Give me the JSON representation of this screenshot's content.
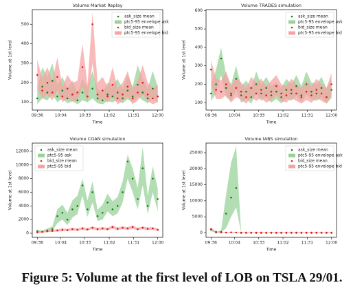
{
  "chart_data": [
    {
      "type": "scatter",
      "title": "Volume Market Replay",
      "xlabel": "Time",
      "ylabel": "Volume at 1st level",
      "x": [
        576,
        582,
        588,
        594,
        600,
        606,
        612,
        618,
        624,
        630,
        636,
        642,
        648,
        654,
        660,
        666,
        672,
        678,
        684,
        690,
        696,
        702,
        708,
        714,
        720
      ],
      "xlim": [
        570,
        726
      ],
      "xticks": [
        {
          "value": 576,
          "label": "09:36"
        },
        {
          "value": 604,
          "label": "10:04"
        },
        {
          "value": 633,
          "label": "10:33"
        },
        {
          "value": 662,
          "label": "11:02"
        },
        {
          "value": 691,
          "label": "11:31"
        },
        {
          "value": 720,
          "label": "12:00"
        }
      ],
      "ylim": [
        60,
        575
      ],
      "yticks": [
        100,
        200,
        300,
        400,
        500
      ],
      "legend": "upper right",
      "series": [
        {
          "name": "ask_size mean",
          "color": "#1f7a1f",
          "values": [
            120,
            180,
            150,
            210,
            130,
            160,
            120,
            140,
            110,
            150,
            130,
            170,
            120,
            110,
            140,
            130,
            150,
            120,
            160,
            130,
            190,
            150,
            120,
            170,
            130
          ]
        },
        {
          "name": "ptc5-95 envelope ask",
          "color": "#9ad39a",
          "lower": [
            90,
            120,
            110,
            140,
            100,
            120,
            95,
            105,
            90,
            110,
            100,
            120,
            95,
            90,
            105,
            100,
            110,
            95,
            115,
            100,
            130,
            110,
            95,
            120,
            100
          ],
          "upper": [
            170,
            280,
            230,
            300,
            190,
            230,
            170,
            210,
            150,
            220,
            180,
            260,
            170,
            150,
            200,
            190,
            220,
            170,
            240,
            180,
            290,
            220,
            170,
            260,
            180
          ]
        },
        {
          "name": "bid_size mean",
          "color": "#e01b1b",
          "values": [
            240,
            160,
            200,
            150,
            230,
            130,
            170,
            140,
            150,
            280,
            130,
            500,
            140,
            160,
            130,
            190,
            120,
            140,
            180,
            120,
            150,
            200,
            140,
            120,
            130
          ]
        },
        {
          "name": "ptc5-95 envelope bid",
          "color": "#f5a3a3",
          "lower": [
            170,
            120,
            140,
            110,
            160,
            100,
            120,
            105,
            110,
            180,
            100,
            300,
            105,
            120,
            100,
            130,
            90,
            105,
            130,
            90,
            110,
            140,
            105,
            90,
            100
          ],
          "upper": [
            320,
            220,
            280,
            210,
            330,
            180,
            240,
            200,
            210,
            400,
            190,
            560,
            200,
            230,
            180,
            280,
            170,
            200,
            260,
            170,
            210,
            290,
            200,
            170,
            190
          ]
        }
      ]
    },
    {
      "type": "scatter",
      "title": "Volume TRADES simulation",
      "xlabel": "Time",
      "ylabel": "Volume at 1st level",
      "x": [
        576,
        582,
        588,
        594,
        600,
        606,
        612,
        618,
        624,
        630,
        636,
        642,
        648,
        654,
        660,
        666,
        672,
        678,
        684,
        690,
        696,
        702,
        708,
        714,
        720
      ],
      "xlim": [
        570,
        726
      ],
      "xticks": [
        {
          "value": 576,
          "label": "09:36"
        },
        {
          "value": 604,
          "label": "10:04"
        },
        {
          "value": 633,
          "label": "10:33"
        },
        {
          "value": 662,
          "label": "11:02"
        },
        {
          "value": 691,
          "label": "11:31"
        },
        {
          "value": 720,
          "label": "12:00"
        }
      ],
      "ylim": [
        60,
        605
      ],
      "yticks": [
        100,
        200,
        300,
        400,
        500,
        600
      ],
      "legend": "upper right",
      "series": [
        {
          "name": "ask_size mean",
          "color": "#1f7a1f",
          "values": [
            150,
            200,
            340,
            180,
            150,
            230,
            140,
            160,
            130,
            200,
            150,
            180,
            140,
            160,
            130,
            170,
            150,
            190,
            140,
            200,
            160,
            150,
            180,
            130,
            170
          ]
        },
        {
          "name": "ptc5-95 envelope ask",
          "color": "#9ad39a",
          "lower": [
            110,
            150,
            250,
            130,
            110,
            170,
            100,
            120,
            95,
            150,
            110,
            130,
            100,
            120,
            95,
            125,
            110,
            140,
            100,
            145,
            120,
            110,
            130,
            95,
            125
          ],
          "upper": [
            200,
            280,
            400,
            250,
            200,
            300,
            190,
            220,
            180,
            270,
            200,
            240,
            190,
            210,
            180,
            230,
            200,
            250,
            190,
            270,
            210,
            200,
            240,
            180,
            230
          ]
        },
        {
          "name": "bid_size mean",
          "color": "#e01b1b",
          "values": [
            280,
            170,
            160,
            200,
            140,
            180,
            160,
            130,
            180,
            150,
            170,
            140,
            160,
            190,
            150,
            140,
            170,
            150,
            130,
            160,
            140,
            170,
            150,
            130,
            200
          ]
        },
        {
          "name": "ptc5-95 envelope bid",
          "color": "#f5a3a3",
          "lower": [
            200,
            120,
            120,
            140,
            100,
            130,
            115,
            95,
            130,
            110,
            125,
            100,
            115,
            140,
            110,
            100,
            125,
            110,
            95,
            115,
            100,
            125,
            110,
            95,
            140
          ],
          "upper": [
            330,
            230,
            220,
            270,
            190,
            240,
            210,
            180,
            240,
            210,
            230,
            190,
            220,
            250,
            200,
            190,
            230,
            200,
            180,
            220,
            190,
            230,
            200,
            180,
            260
          ]
        }
      ]
    },
    {
      "type": "scatter",
      "title": "Volume CGAN simulation",
      "xlabel": "Time",
      "ylabel": "Volume at 1st level",
      "x": [
        576,
        582,
        588,
        594,
        600,
        606,
        612,
        618,
        624,
        630,
        636,
        642,
        648,
        654,
        660,
        666,
        672,
        678,
        684,
        690,
        696,
        702,
        708,
        714,
        720
      ],
      "xlim": [
        570,
        726
      ],
      "xticks": [
        {
          "value": 576,
          "label": "09:36"
        },
        {
          "value": 604,
          "label": "10:04"
        },
        {
          "value": 633,
          "label": "10:33"
        },
        {
          "value": 662,
          "label": "11:02"
        },
        {
          "value": 691,
          "label": "11:31"
        },
        {
          "value": 720,
          "label": "12:00"
        }
      ],
      "ylim": [
        -600,
        13200
      ],
      "yticks": [
        0,
        2000,
        4000,
        6000,
        8000,
        10000,
        12000
      ],
      "legend": "upper left",
      "series": [
        {
          "name": "ask_size mean",
          "color": "#1f7a1f",
          "values": [
            300,
            200,
            400,
            600,
            2500,
            3000,
            2000,
            3500,
            4000,
            7000,
            3500,
            6000,
            2500,
            3000,
            4500,
            3500,
            4000,
            6000,
            10500,
            8000,
            5000,
            9500,
            4000,
            8000,
            5000
          ]
        },
        {
          "name": "ptc5-95 ask",
          "color": "#9ad39a",
          "lower": [
            100,
            100,
            200,
            300,
            1500,
            2000,
            1200,
            2300,
            2800,
            5500,
            2400,
            4500,
            1800,
            2000,
            3200,
            2500,
            2900,
            4500,
            8000,
            6000,
            3500,
            7000,
            2800,
            6000,
            3200
          ],
          "upper": [
            500,
            400,
            700,
            1000,
            3500,
            4200,
            3000,
            4800,
            5500,
            8000,
            4800,
            7600,
            3400,
            4200,
            5800,
            4700,
            5300,
            7600,
            11500,
            9500,
            6600,
            12600,
            5500,
            9800,
            6500
          ]
        },
        {
          "name": "bid_size mean",
          "color": "#e01b1b",
          "values": [
            100,
            200,
            300,
            350,
            400,
            500,
            450,
            600,
            500,
            700,
            550,
            800,
            600,
            700,
            600,
            900,
            650,
            800,
            700,
            900,
            600,
            800,
            650,
            700,
            500
          ]
        },
        {
          "name": "ptc5-95 bid",
          "color": "#f5a3a3",
          "lower": [
            0,
            50,
            150,
            200,
            250,
            300,
            300,
            400,
            350,
            500,
            400,
            600,
            400,
            500,
            450,
            650,
            450,
            600,
            500,
            650,
            450,
            600,
            450,
            500,
            350
          ],
          "upper": [
            250,
            350,
            450,
            500,
            600,
            700,
            650,
            800,
            700,
            900,
            750,
            1000,
            800,
            900,
            800,
            1150,
            850,
            1000,
            900,
            1150,
            800,
            1000,
            850,
            900,
            700
          ]
        }
      ]
    },
    {
      "type": "scatter",
      "title": "Volume IABS simulation",
      "xlabel": "Time",
      "ylabel": "Volume at 1st level",
      "x": [
        576,
        582,
        588,
        594,
        600,
        606,
        612,
        618,
        624,
        630,
        636,
        642,
        648,
        654,
        660,
        666,
        672,
        678,
        684,
        690,
        696,
        702,
        708,
        714,
        720
      ],
      "xlim": [
        570,
        726
      ],
      "xticks": [
        {
          "value": 576,
          "label": "09:36"
        },
        {
          "value": 604,
          "label": "10:04"
        },
        {
          "value": 633,
          "label": "10:33"
        },
        {
          "value": 662,
          "label": "11:02"
        },
        {
          "value": 691,
          "label": "11:31"
        },
        {
          "value": 720,
          "label": "12:00"
        }
      ],
      "ylim": [
        -1400,
        28000
      ],
      "yticks": [
        0,
        5000,
        10000,
        15000,
        20000,
        25000
      ],
      "legend": "upper right",
      "series": [
        {
          "name": "ask_size mean",
          "color": "#1f7a1f",
          "values": [
            1000,
            100,
            300,
            6000,
            11000,
            14000,
            0,
            0,
            0,
            0,
            0,
            0,
            0,
            0,
            0,
            0,
            0,
            0,
            0,
            0,
            0,
            0,
            0,
            0,
            0
          ]
        },
        {
          "name": "ptc5-95 envelope ask",
          "color": "#9ad39a",
          "lower": [
            500,
            0,
            100,
            1500,
            5000,
            8000,
            0,
            0,
            0,
            0,
            0,
            0,
            0,
            0,
            0,
            0,
            0,
            0,
            0,
            0,
            0,
            0,
            0,
            0,
            0
          ],
          "upper": [
            1500,
            300,
            800,
            12000,
            22000,
            27000,
            0,
            0,
            0,
            0,
            0,
            0,
            0,
            0,
            0,
            0,
            0,
            0,
            0,
            0,
            0,
            0,
            0,
            0,
            0
          ]
        },
        {
          "name": "bid_size mean",
          "color": "#e01b1b",
          "values": [
            1200,
            300,
            100,
            100,
            150,
            100,
            80,
            90,
            100,
            80,
            90,
            100,
            90,
            80,
            100,
            90,
            80,
            90,
            100,
            80,
            90,
            100,
            80,
            90,
            100
          ]
        },
        {
          "name": "ptc5-95 envelope bid",
          "color": "#f5a3a3",
          "lower": [
            800,
            100,
            0,
            0,
            0,
            0,
            0,
            0,
            0,
            0,
            0,
            0,
            0,
            0,
            0,
            0,
            0,
            0,
            0,
            0,
            0,
            0,
            0,
            0,
            0
          ],
          "upper": [
            1600,
            500,
            300,
            300,
            350,
            300,
            280,
            290,
            300,
            280,
            290,
            300,
            290,
            280,
            300,
            290,
            280,
            290,
            300,
            280,
            290,
            300,
            280,
            290,
            300
          ]
        }
      ]
    }
  ],
  "caption": "Figure 5: Volume at the first level of LOB on TSLA 29/01."
}
